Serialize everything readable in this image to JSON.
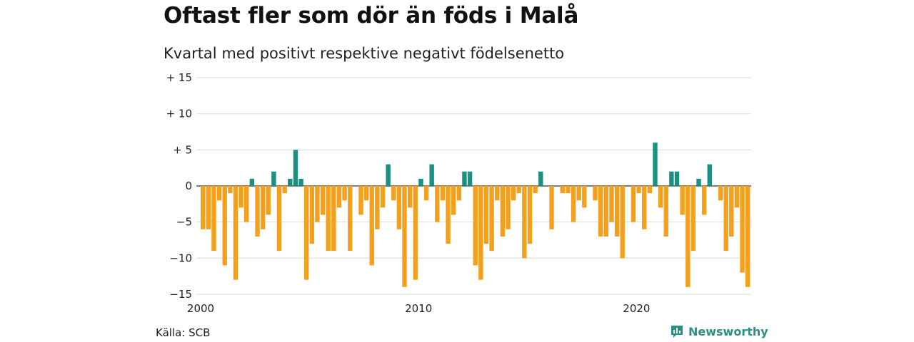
{
  "title": "Oftast fler som dör än föds i Malå",
  "subtitle": "Kvartal med positivt respektive negativt födelsenetto",
  "source": "Källa: SCB",
  "brand": "Newsworthy",
  "colors": {
    "positive": "#1a9080",
    "negative": "#f5a01c",
    "grid": "#d9d9d9",
    "zero_line": "#333333",
    "brand": "#2a8f84"
  },
  "chart_data": {
    "type": "bar",
    "x_tick_labels": [
      "2000",
      "2010",
      "2020"
    ],
    "y_ticks": [
      15,
      10,
      5,
      0,
      -5,
      -10,
      -15
    ],
    "y_tick_labels": [
      "+ 15",
      "+ 10",
      "+  5",
      "0",
      "−5",
      "−10",
      "−15"
    ],
    "ylim": [
      -15,
      15
    ],
    "grid": true,
    "start": "2000 Q1",
    "frequency": "quarterly",
    "values": [
      -6,
      -6,
      -9,
      -2,
      -11,
      -1,
      -13,
      -3,
      -5,
      1,
      -7,
      -6,
      -4,
      2,
      -9,
      -1,
      1,
      5,
      1,
      -13,
      -8,
      -5,
      -4,
      -9,
      -9,
      -3,
      -2,
      -9,
      0,
      -4,
      -2,
      -11,
      -6,
      -3,
      3,
      -2,
      -6,
      -14,
      -3,
      -13,
      1,
      -2,
      3,
      -5,
      -2,
      -8,
      -4,
      -2,
      2,
      2,
      -11,
      -13,
      -8,
      -9,
      -2,
      -7,
      -6,
      -2,
      -1,
      -10,
      -8,
      -1,
      2,
      0,
      -6,
      0,
      -1,
      -1,
      -5,
      -2,
      -3,
      0,
      -2,
      -7,
      -7,
      -5,
      -7,
      -10,
      0,
      -5,
      -1,
      -6,
      -1,
      6,
      -3,
      -7,
      2,
      2,
      -4,
      -14,
      -9,
      1,
      -4,
      3,
      0,
      -2,
      -9,
      -7,
      -3,
      -12,
      -14
    ]
  }
}
